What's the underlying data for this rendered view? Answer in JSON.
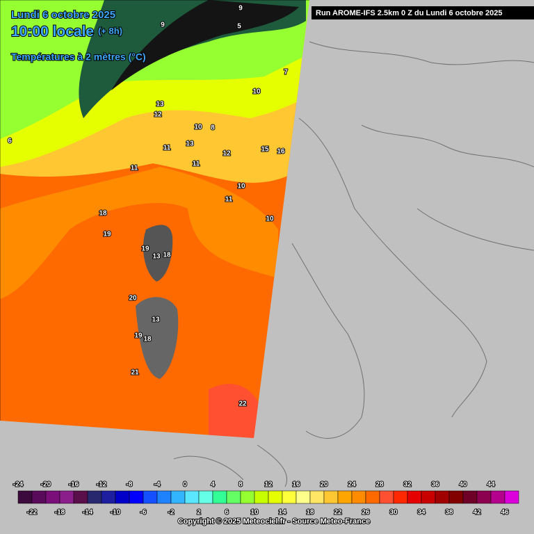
{
  "header": {
    "date": "Lundi 6 octobre 2025",
    "time": "10:00 locale",
    "lead": "(+ 8h)",
    "field": "Températures à 2 mètres (°C)"
  },
  "run": "Run AROME-IFS 2.5km 0 Z du Lundi 6 octobre 2025",
  "contour_labels": [
    "18",
    "19",
    "19",
    "13",
    "18",
    "20",
    "13",
    "19",
    "18",
    "21",
    "22",
    "10",
    "10",
    "12",
    "13",
    "11",
    "13",
    "12",
    "11",
    "11",
    "10",
    "11",
    "10",
    "15",
    "16",
    "9",
    "9",
    "7",
    "6",
    "5",
    "8"
  ],
  "legend": {
    "labels": [
      -24,
      -22,
      -20,
      -18,
      -16,
      -14,
      -12,
      -10,
      -8,
      -6,
      -4,
      -2,
      0,
      2,
      4,
      6,
      8,
      10,
      12,
      14,
      16,
      18,
      20,
      22,
      24,
      26,
      28,
      30,
      32,
      34,
      36,
      38,
      40,
      42,
      44,
      46
    ],
    "colors": [
      "#3c0a3c",
      "#5a0a5a",
      "#7a0f7a",
      "#8c1e8c",
      "#5a0f4b",
      "#28286e",
      "#1e1ea0",
      "#0000c8",
      "#0000ff",
      "#1450ff",
      "#1e82ff",
      "#32b4ff",
      "#5ae6ff",
      "#64ffe6",
      "#32ff96",
      "#64ff64",
      "#96ff32",
      "#c8ff00",
      "#e6ff00",
      "#ffff3c",
      "#ffff8c",
      "#ffe664",
      "#ffc832",
      "#ffa500",
      "#ff8c00",
      "#ff6a00",
      "#ff5032",
      "#ff2800",
      "#e60000",
      "#c80000",
      "#a00000",
      "#820000",
      "#6e0028",
      "#8c0050",
      "#b4008c",
      "#dc00dc"
    ]
  },
  "copyright": "Copyright © 2025 Meteociel.fr - Source Meteo-France"
}
